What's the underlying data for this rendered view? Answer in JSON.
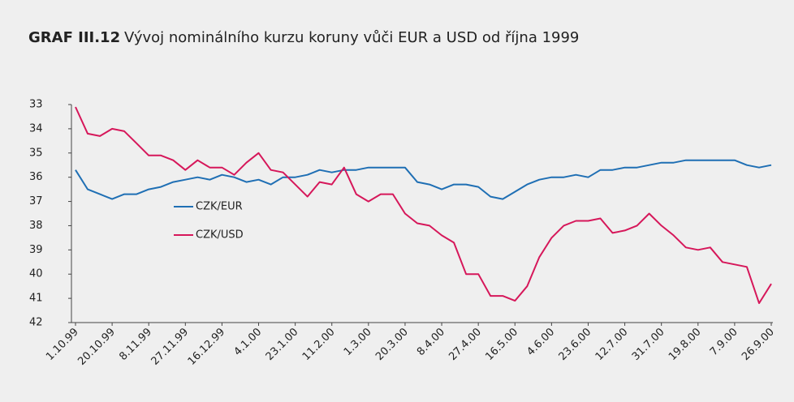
{
  "chart_data": {
    "type": "line",
    "label": "GRAF III.12",
    "title": "Vývoj nominálního kurzu koruny vůči EUR a USD od října 1999",
    "categories": [
      "1.10.99",
      null,
      null,
      "20.10.99",
      null,
      null,
      "8.11.99",
      null,
      null,
      "27.11.99",
      null,
      null,
      "16.12.99",
      null,
      null,
      "4.1.00",
      null,
      null,
      "23.1.00",
      null,
      null,
      "11.2.00",
      null,
      null,
      "1.3.00",
      null,
      null,
      "20.3.00",
      null,
      null,
      "8.4.00",
      null,
      null,
      "27.4.00",
      null,
      null,
      "16.5.00",
      null,
      null,
      "4.6.00",
      null,
      null,
      "23.6.00",
      null,
      null,
      "12.7.00",
      null,
      null,
      "31.7.00",
      null,
      null,
      "19.8.00",
      null,
      null,
      "7.9.00",
      null,
      null,
      "26.9.00"
    ],
    "series": [
      {
        "name": "CZK/EUR",
        "color": "#1f6fb4",
        "values": [
          35.7,
          36.5,
          36.7,
          36.9,
          36.7,
          36.7,
          36.5,
          36.4,
          36.2,
          36.1,
          36.0,
          36.1,
          35.9,
          36.0,
          36.2,
          36.1,
          36.3,
          36.0,
          36.0,
          35.9,
          35.7,
          35.8,
          35.7,
          35.7,
          35.6,
          35.6,
          35.6,
          35.6,
          36.2,
          36.3,
          36.5,
          36.3,
          36.3,
          36.4,
          36.8,
          36.9,
          36.6,
          36.3,
          36.1,
          36.0,
          36.0,
          35.9,
          36.0,
          35.7,
          35.7,
          35.6,
          35.6,
          35.5,
          35.4,
          35.4,
          35.3,
          35.3,
          35.3,
          35.3,
          35.3,
          35.5,
          35.6,
          35.5
        ]
      },
      {
        "name": "CZK/USD",
        "color": "#d6175a",
        "values": [
          33.1,
          34.2,
          34.3,
          34.0,
          34.1,
          34.6,
          35.1,
          35.1,
          35.3,
          35.7,
          35.3,
          35.6,
          35.6,
          35.9,
          35.4,
          35.0,
          35.7,
          35.8,
          36.3,
          36.8,
          36.2,
          36.3,
          35.6,
          36.7,
          37.0,
          36.7,
          36.7,
          37.5,
          37.9,
          38.0,
          38.4,
          38.7,
          40.0,
          40.0,
          40.9,
          40.9,
          41.1,
          40.5,
          39.3,
          38.5,
          38.0,
          37.8,
          37.8,
          37.7,
          38.3,
          38.2,
          38.0,
          37.5,
          38.0,
          38.4,
          38.9,
          39.0,
          38.9,
          39.5,
          39.6,
          39.7,
          41.2,
          40.4
        ]
      }
    ],
    "ylim": [
      33,
      42
    ],
    "y_inverted": true,
    "yticks": [
      33,
      34,
      35,
      36,
      37,
      38,
      39,
      40,
      41,
      42
    ]
  }
}
